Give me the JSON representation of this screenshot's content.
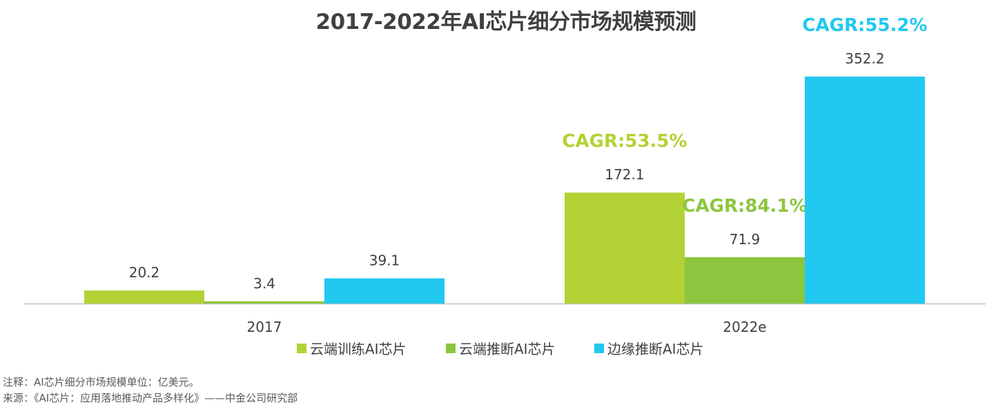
{
  "chart_data": {
    "type": "bar",
    "title": "2017-2022年AI芯片细分市场规模预测",
    "categories": [
      "2017",
      "2022e"
    ],
    "series": [
      {
        "name": "云端训练AI芯片",
        "color": "#b2d235",
        "values": [
          20.2,
          172.1
        ],
        "cagr": "CAGR:53.5%"
      },
      {
        "name": "云端推断AI芯片",
        "color": "#8cc63f",
        "values": [
          3.4,
          71.9
        ],
        "cagr": "CAGR:84.1%"
      },
      {
        "name": "边缘推断AI芯片",
        "color": "#21c8f0",
        "values": [
          39.1,
          352.2
        ],
        "cagr": "CAGR:55.2%"
      }
    ],
    "ylim": [
      0,
      352.2
    ],
    "grid": false,
    "legend": "bottom"
  },
  "footer": {
    "note": "注释：AI芯片细分市场规模单位：亿美元。",
    "source": "来源：《AI芯片：应用落地推动产品多样化》——中金公司研究部"
  }
}
